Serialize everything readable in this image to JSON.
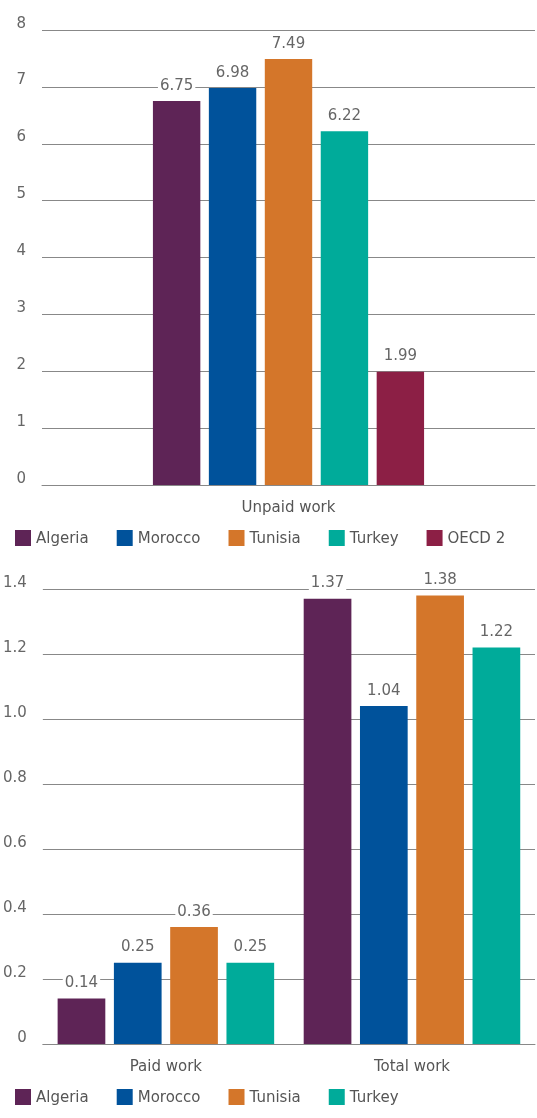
{
  "chart_data": [
    {
      "type": "bar",
      "categories": [
        "Unpaid work"
      ],
      "ylim": [
        0,
        8
      ],
      "yticks": [
        0,
        1,
        2,
        3,
        4,
        5,
        6,
        7,
        8
      ],
      "grid": "y",
      "legend": "bottom",
      "data_labels": true,
      "series": [
        {
          "name": "Algeria",
          "color": "#5e2456",
          "values": [
            6.75
          ]
        },
        {
          "name": "Morocco",
          "color": "#00529b",
          "values": [
            6.98
          ]
        },
        {
          "name": "Tunisia",
          "color": "#d4762a",
          "values": [
            7.49
          ]
        },
        {
          "name": "Turkey",
          "color": "#00ab9a",
          "values": [
            6.22
          ]
        },
        {
          "name": "OECD 2",
          "color": "#8c1f45",
          "values": [
            1.99
          ]
        }
      ]
    },
    {
      "type": "bar",
      "categories": [
        "Paid work",
        "Total work"
      ],
      "ylim": [
        0,
        1.4
      ],
      "yticks": [
        {
          "value": 0,
          "label": "0"
        },
        0.2,
        0.4,
        0.6,
        0.8,
        {
          "value": 1,
          "label": "1.0"
        },
        1.2,
        1.4
      ],
      "grid": "y",
      "legend": "bottom",
      "data_labels": true,
      "series": [
        {
          "name": "Algeria",
          "color": "#5e2456",
          "values": [
            0.14,
            1.37
          ]
        },
        {
          "name": "Morocco",
          "color": "#00529b",
          "values": [
            0.25,
            1.04
          ]
        },
        {
          "name": "Tunisia",
          "color": "#d4762a",
          "values": [
            0.36,
            1.38
          ]
        },
        {
          "name": "Turkey",
          "color": "#00ab9a",
          "values": [
            0.25,
            1.22
          ]
        }
      ]
    }
  ]
}
